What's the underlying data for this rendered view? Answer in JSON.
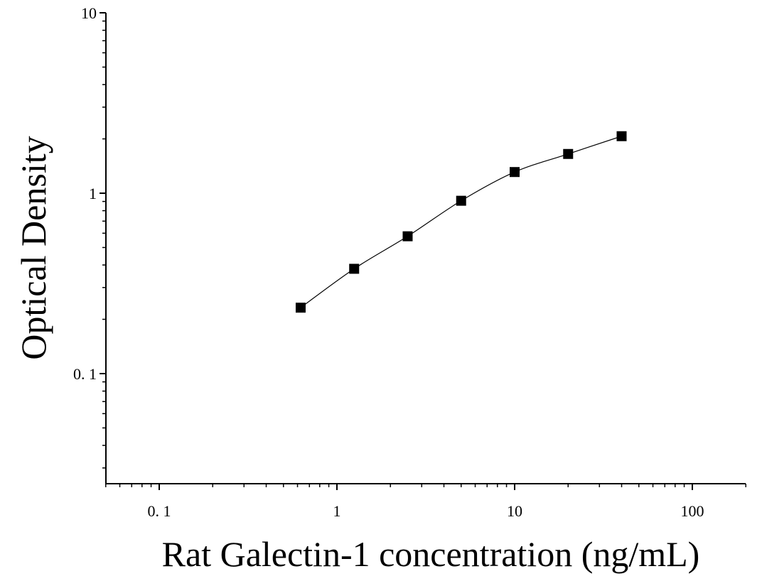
{
  "chart_data": {
    "type": "scatter",
    "title": "",
    "xlabel": "Rat Galectin-1 concentration (ng/mL)",
    "ylabel": "Optical Density",
    "xscale": "log",
    "yscale": "log",
    "xlim": [
      0.05,
      200
    ],
    "ylim": [
      0.025,
      10
    ],
    "xticks": [
      0.1,
      1,
      10,
      100
    ],
    "xtick_labels": [
      "0. 1",
      "1",
      "10",
      "100"
    ],
    "yticks": [
      0.1,
      1,
      10
    ],
    "ytick_labels": [
      "0. 1",
      "1",
      "10"
    ],
    "grid": false,
    "legend": false,
    "marker": "square",
    "series": [
      {
        "x": [
          0.625,
          1.25,
          2.5,
          5,
          10,
          20,
          40
        ],
        "y": [
          0.232,
          0.381,
          0.577,
          0.908,
          1.31,
          1.65,
          2.07
        ],
        "fit_curve": true
      }
    ]
  }
}
